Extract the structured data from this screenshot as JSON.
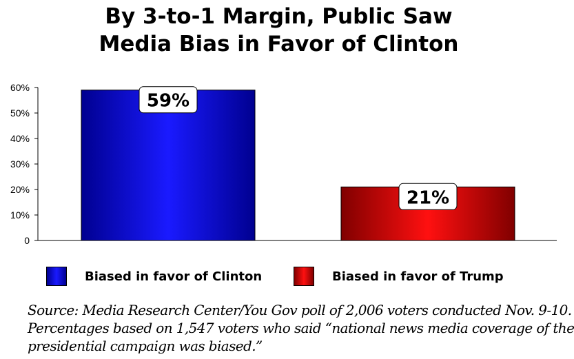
{
  "title": {
    "line1": "By 3-to-1 Margin, Public Saw",
    "line2": "Media Bias in Favor of Clinton"
  },
  "chart_data": {
    "type": "bar",
    "categories": [
      "Biased in favor of Clinton",
      "Biased in favor of Trump"
    ],
    "values": [
      59,
      21
    ],
    "data_labels": [
      "59%",
      "21%"
    ],
    "ylim": [
      0,
      60
    ],
    "yticks": [
      0,
      10,
      20,
      30,
      40,
      50,
      60
    ],
    "ytick_labels": [
      "0",
      "10%",
      "20%",
      "30%",
      "40%",
      "50%",
      "60%"
    ],
    "colors": [
      "#1010c8",
      "#c80a0a"
    ],
    "grid": false,
    "legend": "bottom"
  },
  "legend": {
    "items": [
      {
        "label": "Biased in favor of Clinton",
        "color": "#1414e6"
      },
      {
        "label": "Biased in favor of Trump",
        "color": "#e61414"
      }
    ]
  },
  "source": {
    "line1": "Source: Media Research Center/You Gov poll of 2,006 voters conducted Nov. 9-10.",
    "line2": "Percentages based on 1,547 voters who said “national news media coverage of the",
    "line3": "presidential campaign was biased.”"
  }
}
